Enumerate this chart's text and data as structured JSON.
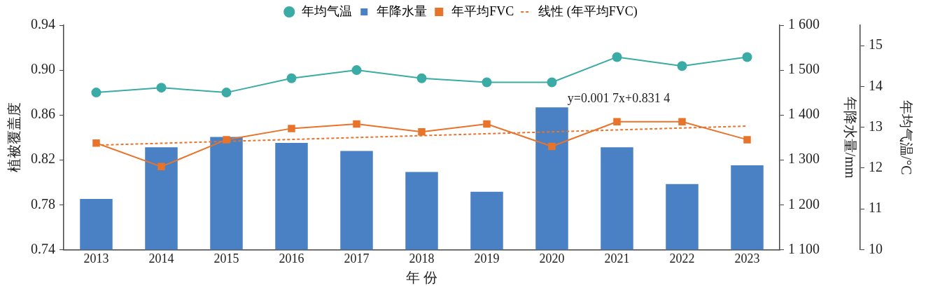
{
  "chart_data": {
    "type": "bar",
    "xlabel": "年 份",
    "ylabel": "植被覆盖度",
    "y2label": "年降水量/mm",
    "y3label": "年均气温/°C",
    "categories": [
      "2013",
      "2014",
      "2015",
      "2016",
      "2017",
      "2018",
      "2019",
      "2020",
      "2021",
      "2022",
      "2023"
    ],
    "series": [
      {
        "name": "年均气温",
        "type": "line",
        "axis": "y3",
        "color": "#3aaba5",
        "marker": "circle",
        "values": [
          13.85,
          13.97,
          13.85,
          14.2,
          14.4,
          14.2,
          14.1,
          14.1,
          14.72,
          14.5,
          14.72
        ]
      },
      {
        "name": "年降水量",
        "axis": "y2",
        "color": "#4a81c4",
        "values": [
          1213,
          1328,
          1351,
          1338,
          1320,
          1273,
          1229,
          1417,
          1328,
          1246,
          1288
        ]
      },
      {
        "name": "年平均FVC",
        "type": "line",
        "color": "#e8732a",
        "marker": "square",
        "values": [
          0.835,
          0.814,
          0.838,
          0.848,
          0.852,
          0.845,
          0.852,
          0.832,
          0.854,
          0.854,
          0.838
        ]
      },
      {
        "name": "线性 (年平均FVC)",
        "type": "line",
        "color": "#e8732a",
        "marker": "none",
        "line_style": "dotted",
        "values": [
          0.8331,
          0.8348,
          0.8365,
          0.8382,
          0.8399,
          0.8416,
          0.8433,
          0.845,
          0.8467,
          0.8484,
          0.8501
        ]
      }
    ],
    "ylim": [
      0.74,
      0.94
    ],
    "yticks": [
      0.74,
      0.78,
      0.82,
      0.86,
      {
        "value": 0.9,
        "label": "0.90"
      },
      0.94
    ],
    "y2lim": [
      1100,
      1600
    ],
    "y2ticks": [
      {
        "value": 1100,
        "label": "1 100"
      },
      {
        "value": 1200,
        "label": "1 200"
      },
      {
        "value": 1300,
        "label": "1 300"
      },
      {
        "value": 1400,
        "label": "1 400"
      },
      {
        "value": 1500,
        "label": "1 500"
      },
      {
        "value": 1600,
        "label": "1 600"
      }
    ],
    "y3lim": [
      10,
      15.5
    ],
    "y3ticks": [
      10,
      11,
      12,
      13,
      14,
      15
    ],
    "annotations": [
      "y=0.001 7x+0.831 4"
    ],
    "grid": false,
    "legend": "top"
  }
}
